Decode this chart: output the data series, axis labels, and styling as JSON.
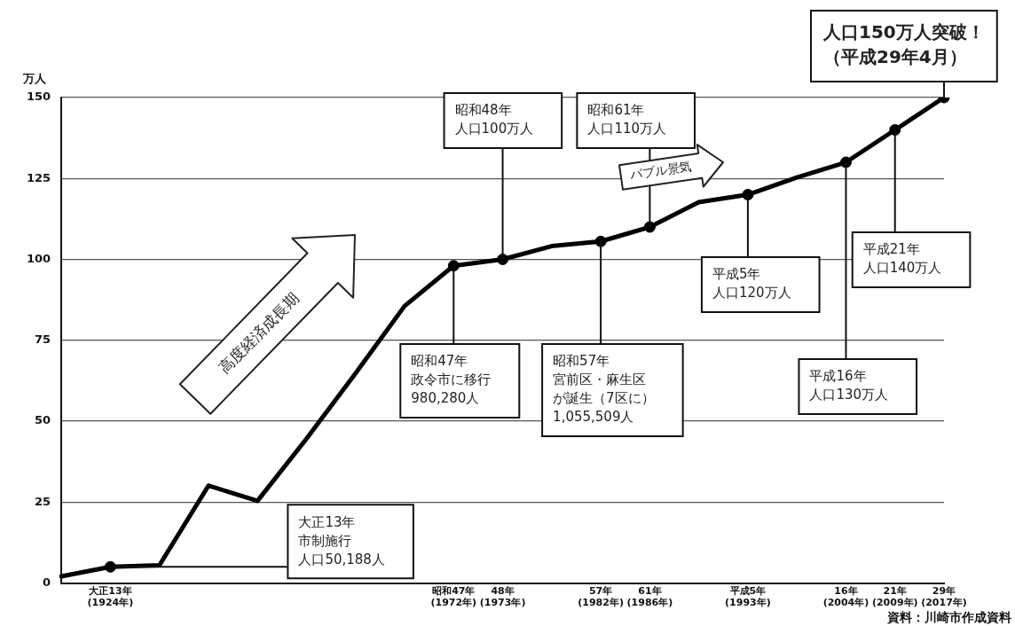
{
  "chart_data": {
    "type": "line",
    "ylabel": "万人",
    "categories": [
      null,
      "大正13年\n(1924年)",
      null,
      null,
      null,
      null,
      null,
      null,
      "昭和47年\n(1972年)",
      "48年\n(1973年)",
      null,
      "57年\n(1982年)",
      "61年\n(1986年)",
      null,
      "平成5年\n(1993年)",
      null,
      "16年\n(2004年)",
      "21年\n(2009年)",
      "29年\n(2017年)"
    ],
    "ylim": [
      0,
      150
    ],
    "yticks": [
      0,
      25,
      50,
      75,
      100,
      125,
      150
    ],
    "grid": "y",
    "series": [
      {
        "type": "line",
        "color": "#000000",
        "marker": "none",
        "values": [
          2.1,
          5.0188,
          5.5,
          30.1,
          25.4,
          44.6,
          64.8,
          85.6,
          98.028,
          100,
          104.1,
          105.5509,
          110,
          117.7,
          120,
          125.3,
          130,
          140,
          150
        ]
      },
      {
        "type": "scatter",
        "color": "#000000",
        "marker": "circle",
        "x": [
          "大正13年\n(1924年)",
          "昭和47年\n(1972年)",
          "48年\n(1973年)",
          "57年\n(1982年)",
          "61年\n(1986年)",
          "平成5年\n(1993年)",
          "16年\n(2004年)",
          "21年\n(2009年)",
          "29年\n(2017年)"
        ],
        "values": [
          5.0188,
          98.028,
          100,
          105.5509,
          110,
          120,
          130,
          140,
          150
        ]
      }
    ],
    "annotations": [
      {
        "text": "大正13年市制施行人口50,188人",
        "x": "大正13年\n(1924年)",
        "y": 5.0188
      },
      {
        "text": "昭和47年政令市に移行980,280人",
        "x": "昭和47年\n(1972年)",
        "y": 98.028
      },
      {
        "text": "昭和48年人口100万人",
        "x": "48年\n(1973年)",
        "y": 100
      },
      {
        "text": "昭和57年宮前区・麻生区が誕生（7区に）1,055,509人",
        "x": "57年\n(1982年)",
        "y": 105.5509
      },
      {
        "text": "昭和61年人口110万人",
        "x": "61年\n(1986年)",
        "y": 110
      },
      {
        "text": "平成5年人口120万人",
        "x": "平成5年\n(1993年)",
        "y": 120
      },
      {
        "text": "平成16年人口130万人",
        "x": "16年\n(2004年)",
        "y": 130
      },
      {
        "text": "平成21年人口140万人",
        "x": "21年\n(2009年)",
        "y": 140
      },
      {
        "text": "人口150万人突破！（平成29年4月）",
        "x": "29年\n(2017年)",
        "y": 150
      },
      "高度経済成長期",
      "バブル景気",
      "資料：川崎市作成資料"
    ]
  }
}
